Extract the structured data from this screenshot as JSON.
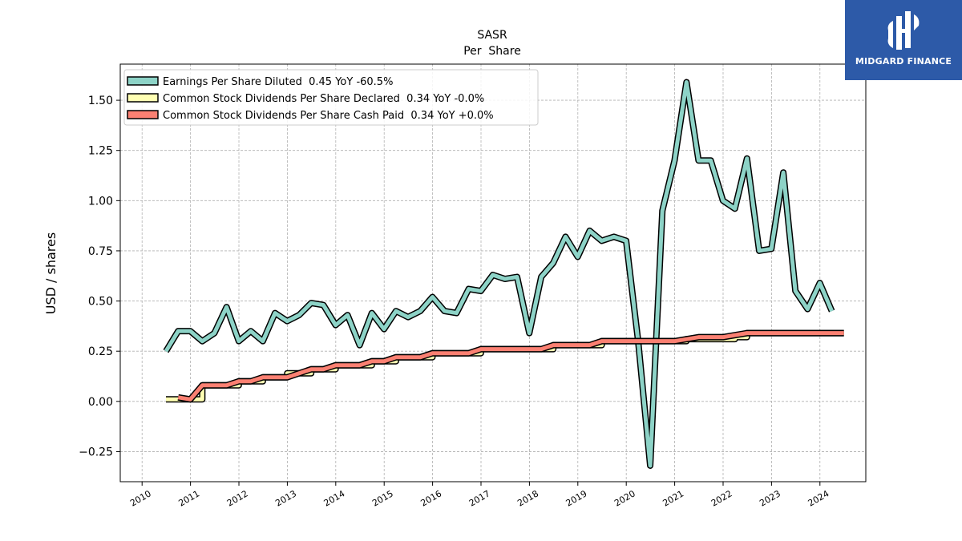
{
  "brand": {
    "name": "MIDGARD FINANCE",
    "bg_color": "#2d5aa8"
  },
  "chart_data": {
    "type": "line",
    "title": "SASR",
    "subtitle": "Per  Share",
    "xlabel": "",
    "ylabel": "USD / shares",
    "xlim": [
      "2009-10-01",
      "2024-10-01"
    ],
    "ylim": [
      -0.4,
      1.68
    ],
    "x_ticks": [
      "2010",
      "2011",
      "2012",
      "2013",
      "2014",
      "2015",
      "2016",
      "2017",
      "2018",
      "2019",
      "2020",
      "2021",
      "2022",
      "2023",
      "2024"
    ],
    "y_ticks": [
      -0.25,
      0.0,
      0.25,
      0.5,
      0.75,
      1.0,
      1.25,
      1.5
    ],
    "y_tick_labels": [
      "−0.25",
      "0.00",
      "0.25",
      "0.50",
      "0.75",
      "1.00",
      "1.25",
      "1.50"
    ],
    "grid": true,
    "legend_position": "top-left",
    "series": [
      {
        "name": "Earnings Per Share Diluted  0.45 YoY -60.5%",
        "color": "#8dd3c7",
        "style": "line",
        "x": [
          "2010-06-30",
          "2010-09-30",
          "2010-12-31",
          "2011-03-31",
          "2011-06-30",
          "2011-09-30",
          "2011-12-31",
          "2012-03-31",
          "2012-06-30",
          "2012-09-30",
          "2012-12-31",
          "2013-03-31",
          "2013-06-30",
          "2013-09-30",
          "2013-12-31",
          "2014-03-31",
          "2014-06-30",
          "2014-09-30",
          "2014-12-31",
          "2015-03-31",
          "2015-06-30",
          "2015-09-30",
          "2015-12-31",
          "2016-03-31",
          "2016-06-30",
          "2016-09-30",
          "2016-12-31",
          "2017-03-31",
          "2017-06-30",
          "2017-09-30",
          "2017-12-31",
          "2018-03-31",
          "2018-06-30",
          "2018-09-30",
          "2018-12-31",
          "2019-03-31",
          "2019-06-30",
          "2019-09-30",
          "2019-12-31",
          "2020-03-31",
          "2020-06-30",
          "2020-09-30",
          "2020-12-31",
          "2021-03-31",
          "2021-06-30",
          "2021-09-30",
          "2021-12-31",
          "2022-03-31",
          "2022-06-30",
          "2022-09-30",
          "2022-12-31",
          "2023-03-31",
          "2023-06-30",
          "2023-09-30",
          "2023-12-31",
          "2024-03-31"
        ],
        "values": [
          0.25,
          0.35,
          0.35,
          0.3,
          0.34,
          0.47,
          0.3,
          0.35,
          0.3,
          0.44,
          0.4,
          0.43,
          0.49,
          0.48,
          0.38,
          0.43,
          0.28,
          0.44,
          0.36,
          0.45,
          0.42,
          0.45,
          0.52,
          0.45,
          0.44,
          0.56,
          0.55,
          0.63,
          0.61,
          0.62,
          0.34,
          0.62,
          0.69,
          0.82,
          0.72,
          0.85,
          0.8,
          0.82,
          0.8,
          0.3,
          -0.32,
          0.95,
          1.2,
          1.59,
          1.2,
          1.2,
          1.0,
          0.96,
          1.21,
          0.75,
          0.76,
          1.14,
          0.55,
          0.46,
          0.59,
          0.45
        ]
      },
      {
        "name": "Common Stock Dividends Per Share Declared  0.34 YoY -0.0%",
        "color": "#ffffb3",
        "style": "step",
        "x": [
          "2010-06-30",
          "2010-12-31",
          "2011-03-31",
          "2011-06-30",
          "2011-09-30",
          "2011-12-31",
          "2012-03-31",
          "2012-06-30",
          "2012-09-30",
          "2012-12-31",
          "2013-03-31",
          "2013-06-30",
          "2013-09-30",
          "2013-12-31",
          "2014-03-31",
          "2014-06-30",
          "2014-09-30",
          "2014-12-31",
          "2015-03-31",
          "2015-06-30",
          "2015-09-30",
          "2015-12-31",
          "2016-03-31",
          "2016-06-30",
          "2016-09-30",
          "2016-12-31",
          "2017-03-31",
          "2017-06-30",
          "2017-09-30",
          "2017-12-31",
          "2018-03-31",
          "2018-06-30",
          "2018-09-30",
          "2018-12-31",
          "2019-03-31",
          "2019-06-30",
          "2019-09-30",
          "2019-12-31",
          "2020-03-31",
          "2020-06-30",
          "2020-09-30",
          "2020-12-31",
          "2021-03-31",
          "2021-06-30",
          "2021-09-30",
          "2021-12-31",
          "2022-03-31",
          "2022-06-30",
          "2022-09-30",
          "2022-12-31",
          "2023-03-31",
          "2023-06-30",
          "2023-09-30",
          "2023-12-31",
          "2024-03-31",
          "2024-06-30"
        ],
        "values": [
          0.01,
          0.01,
          0.08,
          0.08,
          0.08,
          0.1,
          0.1,
          0.12,
          0.12,
          0.14,
          0.14,
          0.16,
          0.16,
          0.18,
          0.18,
          0.18,
          0.2,
          0.2,
          0.22,
          0.22,
          0.22,
          0.24,
          0.24,
          0.24,
          0.24,
          0.26,
          0.26,
          0.26,
          0.26,
          0.26,
          0.26,
          0.28,
          0.28,
          0.28,
          0.28,
          0.3,
          0.3,
          0.3,
          0.3,
          0.3,
          0.3,
          0.3,
          0.31,
          0.31,
          0.31,
          0.31,
          0.32,
          0.34,
          0.34,
          0.34,
          0.34,
          0.34,
          0.34,
          0.34,
          0.34,
          0.34
        ]
      },
      {
        "name": "Common Stock Dividends Per Share Cash Paid  0.34 YoY +0.0%",
        "color": "#fb8072",
        "style": "line",
        "x": [
          "2010-09-30",
          "2010-12-31",
          "2011-03-31",
          "2011-06-30",
          "2011-09-30",
          "2011-12-31",
          "2012-03-31",
          "2012-06-30",
          "2012-09-30",
          "2012-12-31",
          "2013-03-31",
          "2013-06-30",
          "2013-09-30",
          "2013-12-31",
          "2014-03-31",
          "2014-06-30",
          "2014-09-30",
          "2014-12-31",
          "2015-03-31",
          "2015-06-30",
          "2015-09-30",
          "2015-12-31",
          "2016-03-31",
          "2016-06-30",
          "2016-09-30",
          "2016-12-31",
          "2017-03-31",
          "2017-06-30",
          "2017-09-30",
          "2017-12-31",
          "2018-03-31",
          "2018-06-30",
          "2018-09-30",
          "2018-12-31",
          "2019-03-31",
          "2019-06-30",
          "2019-09-30",
          "2019-12-31",
          "2020-03-31",
          "2020-06-30",
          "2020-09-30",
          "2020-12-31",
          "2021-03-31",
          "2021-06-30",
          "2021-09-30",
          "2021-12-31",
          "2022-03-31",
          "2022-06-30",
          "2022-09-30",
          "2022-12-31",
          "2023-03-31",
          "2023-06-30",
          "2023-09-30",
          "2023-12-31",
          "2024-03-31",
          "2024-06-30"
        ],
        "values": [
          0.02,
          0.01,
          0.08,
          0.08,
          0.08,
          0.1,
          0.1,
          0.12,
          0.12,
          0.12,
          0.14,
          0.16,
          0.16,
          0.18,
          0.18,
          0.18,
          0.2,
          0.2,
          0.22,
          0.22,
          0.22,
          0.24,
          0.24,
          0.24,
          0.24,
          0.26,
          0.26,
          0.26,
          0.26,
          0.26,
          0.26,
          0.28,
          0.28,
          0.28,
          0.28,
          0.3,
          0.3,
          0.3,
          0.3,
          0.3,
          0.3,
          0.3,
          0.31,
          0.32,
          0.32,
          0.32,
          0.33,
          0.34,
          0.34,
          0.34,
          0.34,
          0.34,
          0.34,
          0.34,
          0.34,
          0.34
        ]
      }
    ]
  }
}
